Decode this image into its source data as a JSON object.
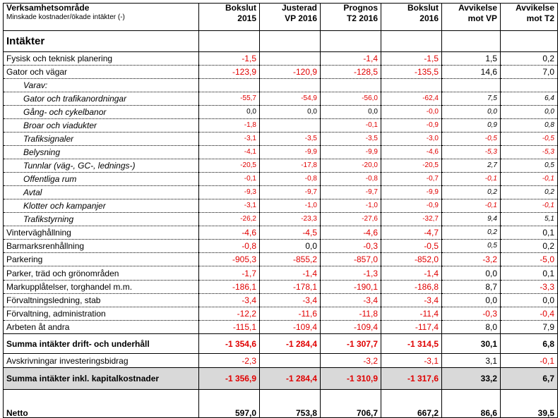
{
  "header": {
    "col0_title": "Verksamhetsområde",
    "col0_sub": "Minskade kostnader/ökade intäkter (-)",
    "columns": [
      {
        "l1": "Bokslut",
        "l2": "2015"
      },
      {
        "l1": "Justerad",
        "l2": "VP 2016"
      },
      {
        "l1": "Prognos",
        "l2": "T2 2016"
      },
      {
        "l1": "Bokslut",
        "l2": "2016"
      },
      {
        "l1": "Avvikelse",
        "l2": "mot VP"
      },
      {
        "l1": "Avvikelse",
        "l2": "mot T2"
      }
    ]
  },
  "section_title": "Intäkter",
  "rows": [
    {
      "label": "Fysisk och teknisk planering",
      "v": [
        "-1,5",
        "",
        "-1,4",
        "-1,5",
        "1,5",
        "0,2"
      ]
    },
    {
      "label": "Gator och vägar",
      "v": [
        "-123,9",
        "-120,9",
        "-128,5",
        "-135,5",
        "14,6",
        "7,0"
      ]
    },
    {
      "label": "Varav:",
      "v": [
        "",
        "",
        "",
        "",
        "",
        ""
      ]
    },
    {
      "label": "Gator och trafikanordningar",
      "v": [
        "-55,7",
        "-54,9",
        "-56,0",
        "-62,4",
        "7,5",
        "6,4"
      ]
    },
    {
      "label": "Gång- och cykelbanor",
      "v": [
        "0,0",
        "0,0",
        "0,0",
        "-0,0",
        "0,0",
        "0,0"
      ]
    },
    {
      "label": "Broar och viadukter",
      "v": [
        "-1,8",
        "",
        "-0,1",
        "-0,9",
        "0,9",
        "0,8"
      ]
    },
    {
      "label": "Trafiksignaler",
      "v": [
        "-3,1",
        "-3,5",
        "-3,5",
        "-3,0",
        "-0,5",
        "-0,5"
      ]
    },
    {
      "label": "Belysning",
      "v": [
        "-4,1",
        "-9,9",
        "-9,9",
        "-4,6",
        "-5,3",
        "-5,3"
      ]
    },
    {
      "label": "Tunnlar (väg-, GC-, lednings-)",
      "v": [
        "-20,5",
        "-17,8",
        "-20,0",
        "-20,5",
        "2,7",
        "0,5"
      ]
    },
    {
      "label": "Offentliga rum",
      "v": [
        "-0,1",
        "-0,8",
        "-0,8",
        "-0,7",
        "-0,1",
        "-0,1"
      ]
    },
    {
      "label": "Avtal",
      "v": [
        "-9,3",
        "-9,7",
        "-9,7",
        "-9,9",
        "0,2",
        "0,2"
      ]
    },
    {
      "label": "Klotter och kampanjer",
      "v": [
        "-3,1",
        "-1,0",
        "-1,0",
        "-0,9",
        "-0,1",
        "-0,1"
      ]
    },
    {
      "label": "Trafikstyrning",
      "v": [
        "-26,2",
        "-23,3",
        "-27,6",
        "-32,7",
        "9,4",
        "5,1"
      ]
    },
    {
      "label": "Vinterväghållning",
      "v": [
        "-4,6",
        "-4,5",
        "-4,6",
        "-4,7",
        "0,2",
        "0,1"
      ]
    },
    {
      "label": "Barmarksrenhållning",
      "v": [
        "-0,8",
        "0,0",
        "-0,3",
        "-0,5",
        "0,5",
        "0,2"
      ]
    },
    {
      "label": "Parkering",
      "v": [
        "-905,3",
        "-855,2",
        "-857,0",
        "-852,0",
        "-3,2",
        "-5,0"
      ]
    },
    {
      "label": "Parker, träd och grönområden",
      "v": [
        "-1,7",
        "-1,4",
        "-1,3",
        "-1,4",
        "0,0",
        "0,1"
      ]
    },
    {
      "label": "Markupplåtelser, torghandel m.m.",
      "v": [
        "-186,1",
        "-178,1",
        "-190,1",
        "-186,8",
        "8,7",
        "-3,3"
      ]
    },
    {
      "label": "Förvaltningsledning, stab",
      "v": [
        "-3,4",
        "-3,4",
        "-3,4",
        "-3,4",
        "0,0",
        "0,0"
      ]
    },
    {
      "label": "Förvaltning, administration",
      "v": [
        "-12,2",
        "-11,6",
        "-11,8",
        "-11,4",
        "-0,3",
        "-0,4"
      ]
    },
    {
      "label": "Arbeten åt andra",
      "v": [
        "-115,1",
        "-109,4",
        "-109,4",
        "-117,4",
        "8,0",
        "7,9"
      ]
    }
  ],
  "total1": {
    "label": "Summa intäkter drift- och underhåll",
    "v": [
      "-1 354,6",
      "-1 284,4",
      "-1 307,7",
      "-1 314,5",
      "30,1",
      "6,8"
    ]
  },
  "avskr": {
    "label": "Avskrivningar investeringsbidrag",
    "v": [
      "-2,3",
      "",
      "-3,2",
      "-3,1",
      "3,1",
      "-0,1"
    ]
  },
  "total2": {
    "label": "Summa intäkter inkl. kapitalkostnader",
    "v": [
      "-1 356,9",
      "-1 284,4",
      "-1 310,9",
      "-1 317,6",
      "33,2",
      "6,7"
    ]
  },
  "netto": {
    "label": "Netto",
    "v": [
      "597,0",
      "753,8",
      "706,7",
      "667,2",
      "86,6",
      "39,5"
    ]
  }
}
